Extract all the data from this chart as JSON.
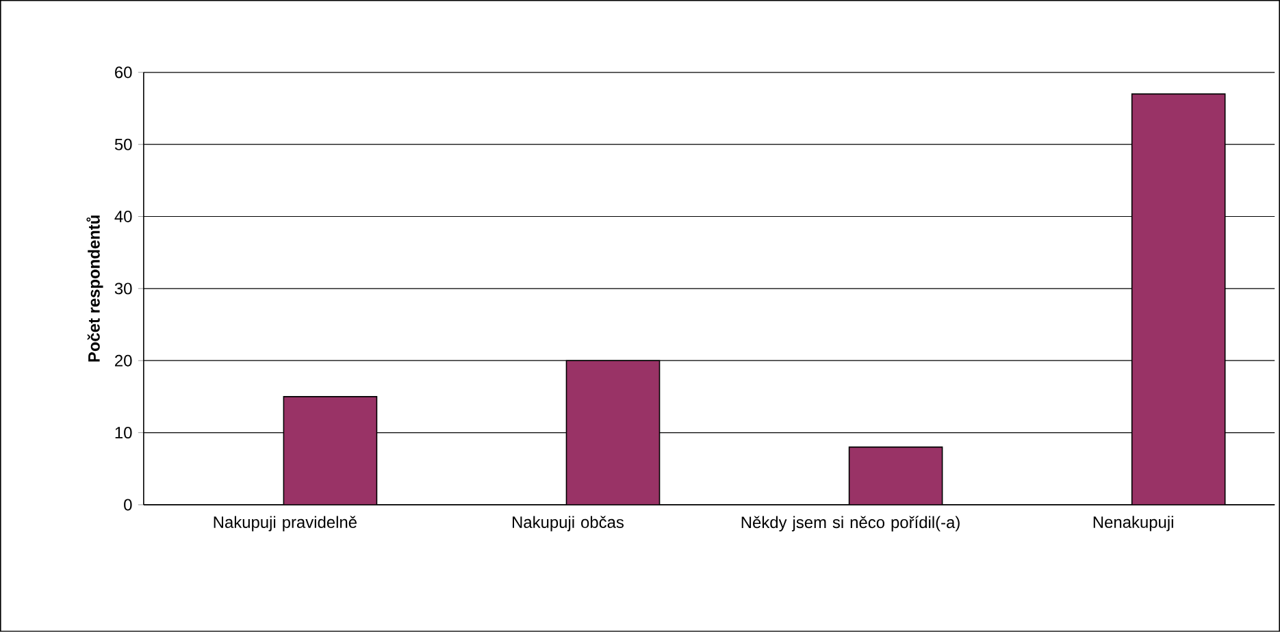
{
  "chart_data": {
    "type": "bar",
    "ylabel": "Počet respondentů",
    "categories": [
      "Nakupuji pravidelně",
      "Nakupuji občas",
      "Někdy jsem si něco pořídil(-a)",
      "Nenakupuji"
    ],
    "values": [
      15,
      20,
      8,
      57
    ],
    "color": "#993366",
    "ylim": [
      0,
      60
    ],
    "yticks": [
      0,
      10,
      20,
      30,
      40,
      50,
      60
    ],
    "grid": "y"
  }
}
